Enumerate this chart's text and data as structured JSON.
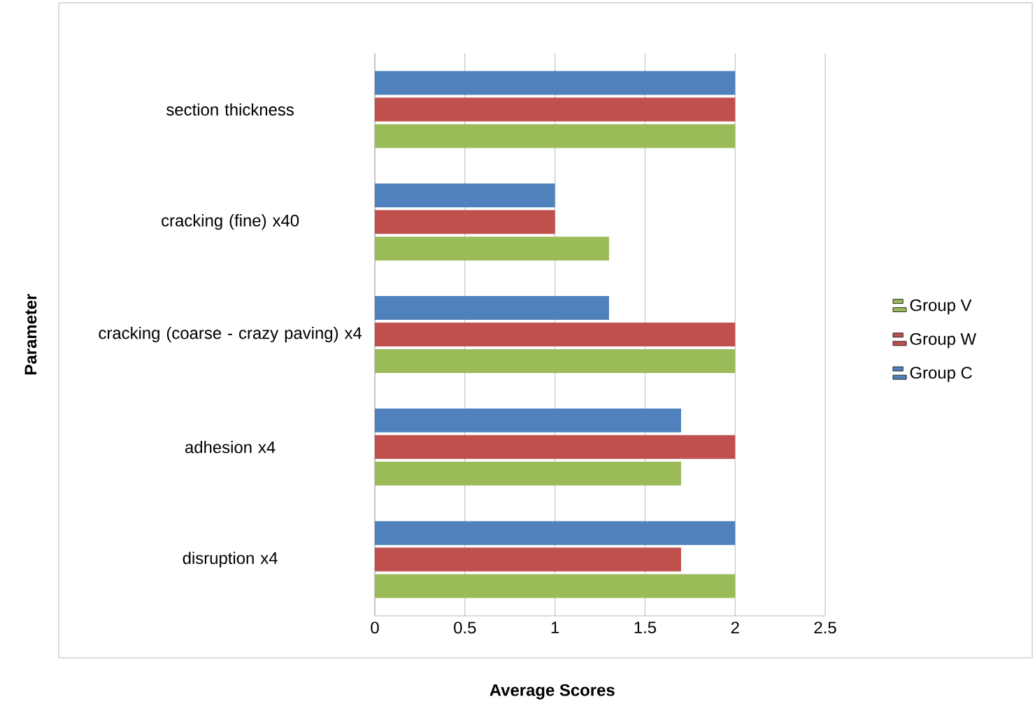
{
  "chart_data": {
    "type": "bar",
    "orientation": "horizontal",
    "xlabel": "Average Scores",
    "ylabel": "Parameter",
    "categories": [
      "section thickness",
      "cracking (fine) x40",
      "cracking (coarse - crazy paving) x4",
      "adhesion x4",
      "disruption x4"
    ],
    "series": [
      {
        "name": "Group V",
        "color": "#9bbb59",
        "values": [
          2,
          1.3,
          2,
          1.7,
          2
        ]
      },
      {
        "name": "Group W",
        "color": "#c0504d",
        "values": [
          2,
          1,
          2,
          2,
          1.7
        ]
      },
      {
        "name": "Group C",
        "color": "#4f81bd",
        "values": [
          2,
          1,
          1.3,
          1.7,
          2
        ]
      }
    ],
    "xlim": [
      0,
      2.5
    ],
    "xticks": [
      0,
      0.5,
      1,
      1.5,
      2,
      2.5
    ],
    "grid": "x",
    "legend": "right"
  }
}
